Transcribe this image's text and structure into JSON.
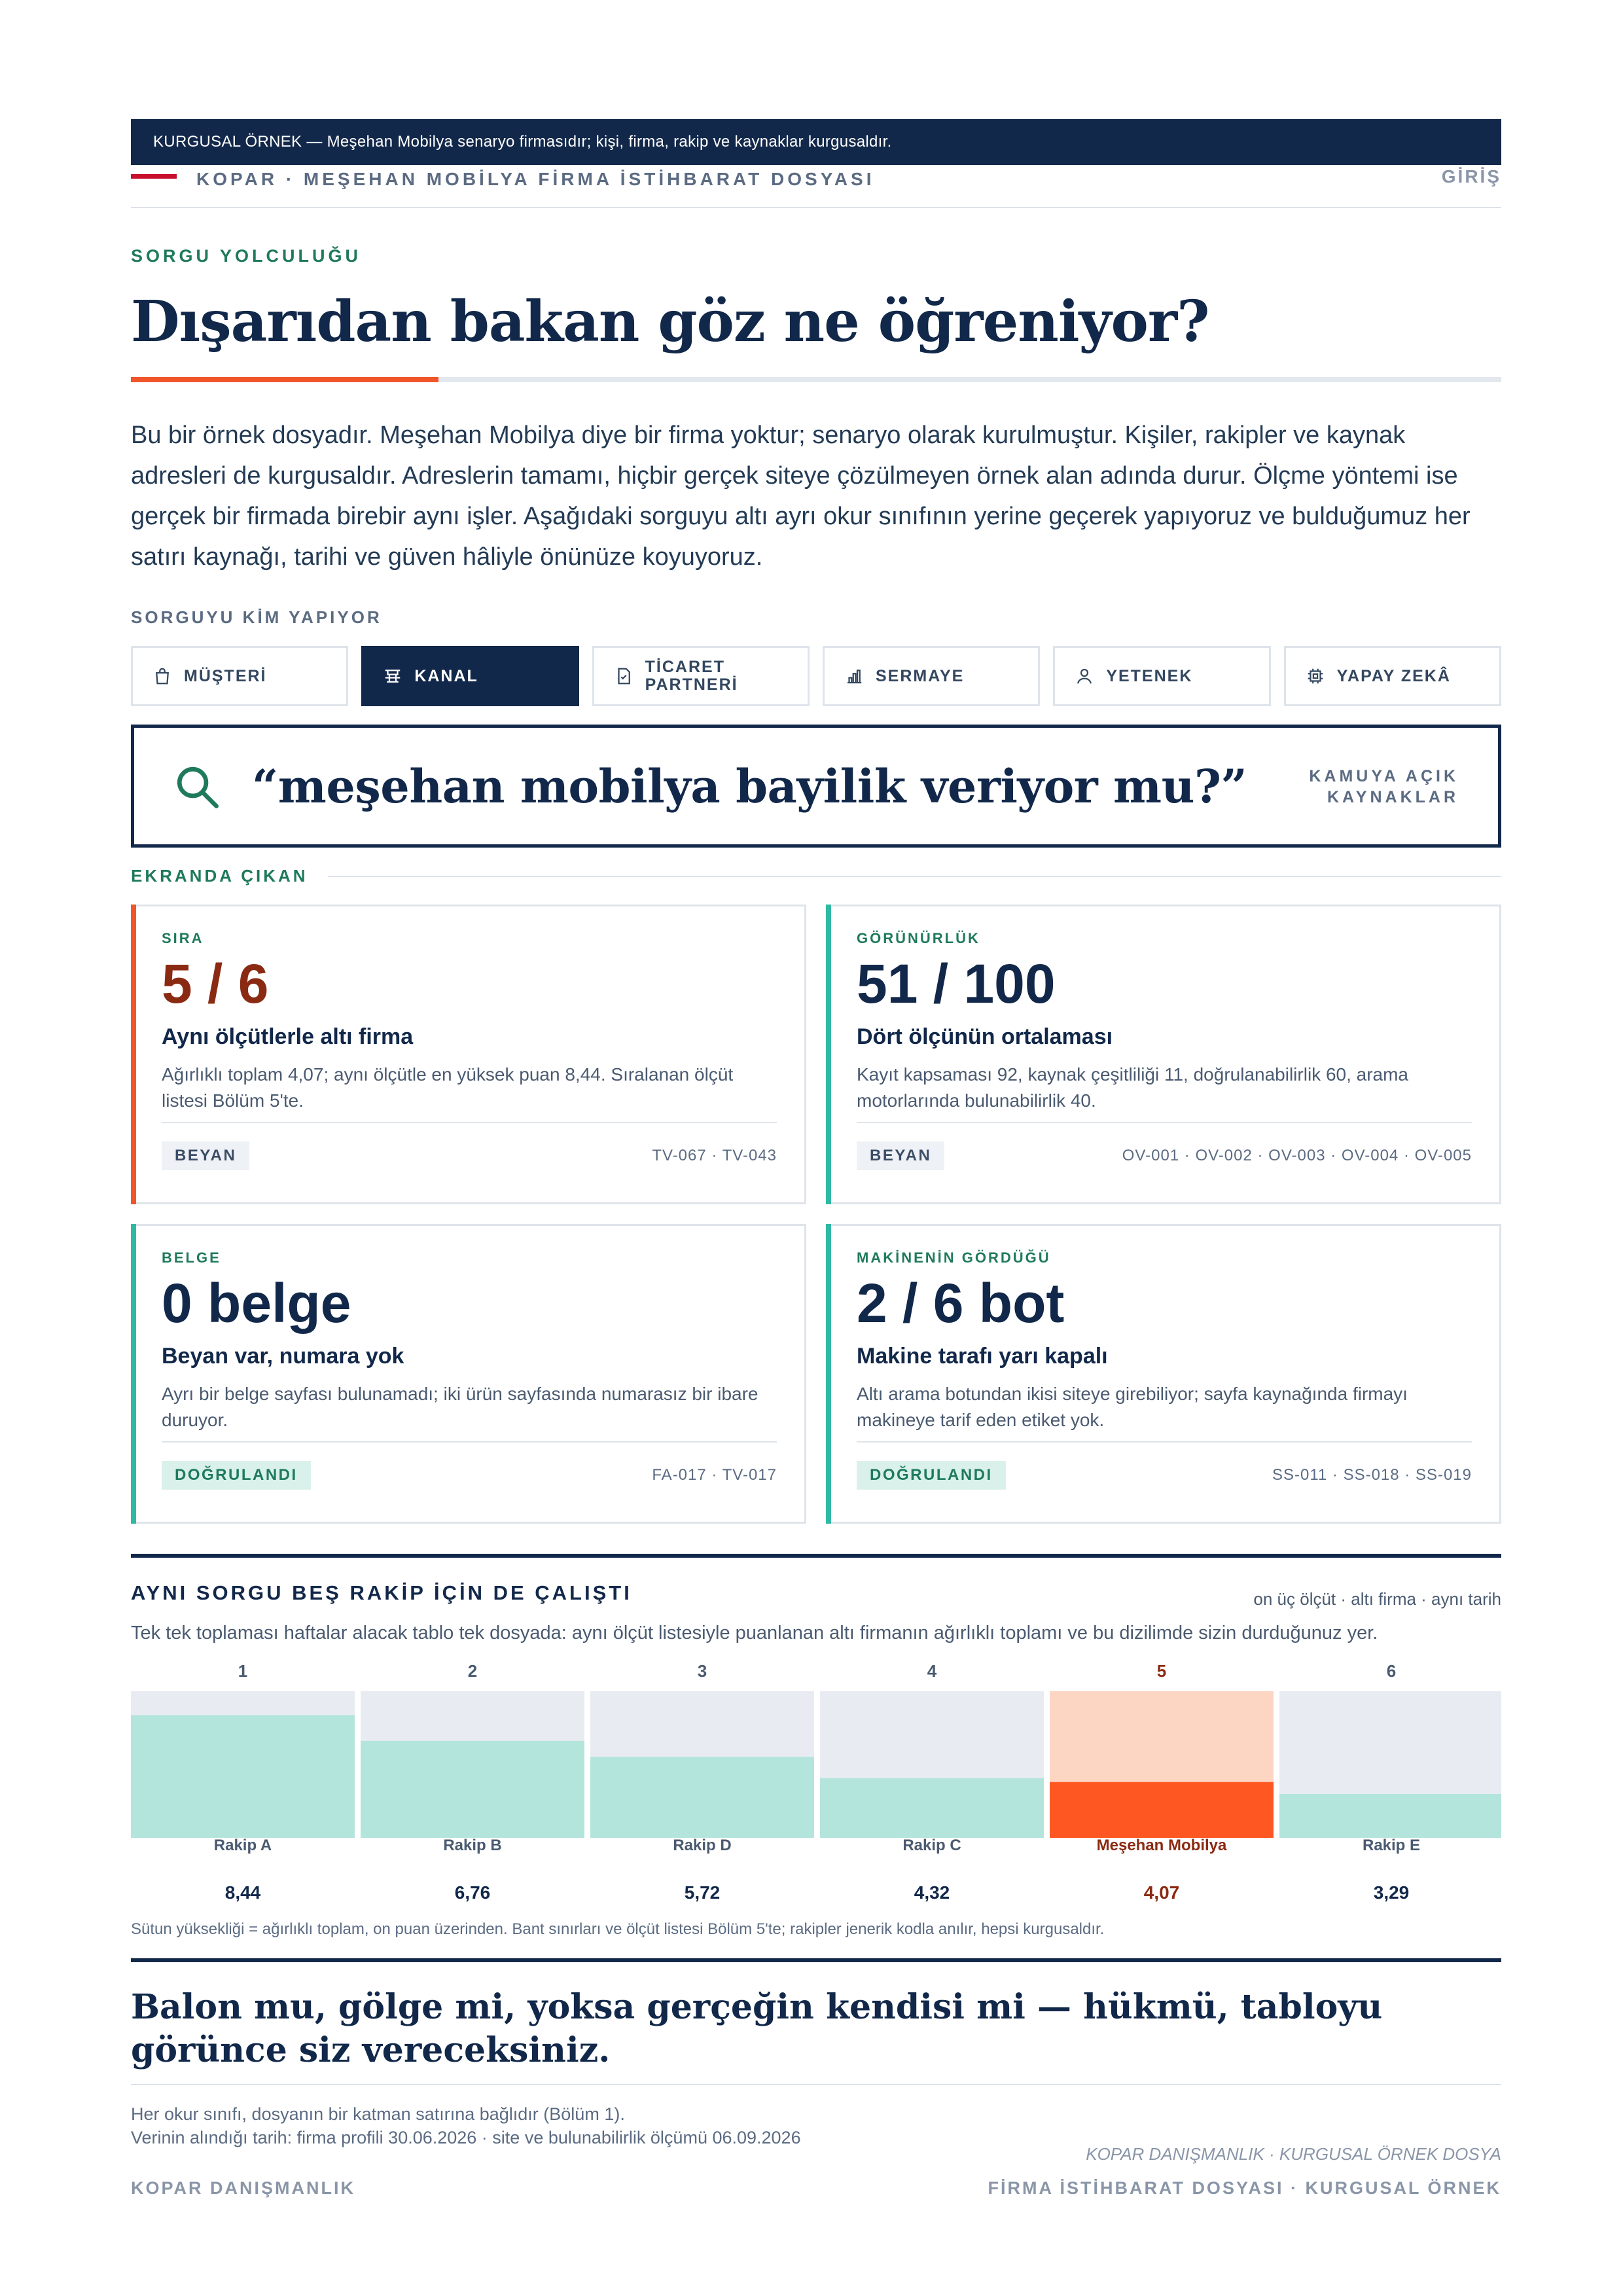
{
  "banner": "KURGUSAL ÖRNEK — Meşehan Mobilya senaryo firmasıdır; kişi, firma, rakip ve kaynaklar kurgusaldır.",
  "topnav": {
    "brand": "KOPAR · MEŞEHAN MOBİLYA FİRMA İSTİHBARAT DOSYASI",
    "entry": "GİRİŞ"
  },
  "kicker": "SORGU YOLCULUĞU",
  "title": "Dışarıdan bakan göz ne öğreniyor?",
  "intro": "Bu bir örnek dosyadır. Meşehan Mobilya diye bir firma yoktur; senaryo olarak kurulmuştur. Kişiler, rakipler ve kaynak adresleri de kurgusaldır. Adreslerin tamamı, hiçbir gerçek siteye çözülmeyen örnek alan adında durur. Ölçme yöntemi ise gerçek bir firmada birebir aynı işler. Aşağıdaki sorguyu altı ayrı okur sınıfının yerine geçerek yapıyoruz ve bulduğumuz her satırı kaynağı, tarihi ve güven hâliyle önünüze koyuyoruz.",
  "who": {
    "label": "SORGUYU KİM YAPIYOR",
    "tabs": [
      {
        "label": "MÜŞTERİ",
        "icon": "bag-icon",
        "active": false
      },
      {
        "label": "KANAL",
        "icon": "channel-icon",
        "active": true
      },
      {
        "label": "TİCARET PARTNERİ",
        "icon": "document-check-icon",
        "active": false
      },
      {
        "label": "SERMAYE",
        "icon": "bar-chart-icon",
        "active": false
      },
      {
        "label": "YETENEK",
        "icon": "person-icon",
        "active": false
      },
      {
        "label": "YAPAY ZEKÂ",
        "icon": "chip-icon",
        "active": false
      }
    ]
  },
  "query": {
    "text": "“meşehan mobilya bayilik veriyor mu?”",
    "source": "KAMUYA AÇIK KAYNAKLAR",
    "icon": "search-icon"
  },
  "screen_label": "EKRANDA ÇIKAN",
  "cards": [
    {
      "label": "SIRA",
      "big": "5 / 6",
      "title": "Aynı ölçütlerle altı firma",
      "desc": "Ağırlıklı toplam 4,07; aynı ölçütle en yüksek puan 8,44. Sıralanan ölçüt listesi Bölüm 5'te.",
      "badge": "BEYAN",
      "refs": "TV-067 · TV-043",
      "accent": "#f0562a",
      "bigColor": "#8b2a12"
    },
    {
      "label": "GÖRÜNÜRLÜK",
      "big": "51 / 100",
      "title": "Dört ölçünün ortalaması",
      "desc": "Kayıt kapsaması 92, kaynak çeşitliliği 11, doğrulanabilirlik 60, arama motorlarında bulunabilirlik 40.",
      "badge": "BEYAN",
      "refs": "OV-001 · OV-002 · OV-003 · OV-004 · OV-005",
      "accent": "#2fb9a4",
      "bigColor": "#12284a"
    },
    {
      "label": "BELGE",
      "big": "0 belge",
      "title": "Beyan var, numara yok",
      "desc": "Ayrı bir belge sayfası bulunamadı; iki ürün sayfasında numarasız bir ibare duruyor.",
      "badge": "DOĞRULANDI",
      "refs": "FA-017 · TV-017",
      "accent": "#2fb9a4",
      "bigColor": "#12284a"
    },
    {
      "label": "MAKİNENİN GÖRDÜĞÜ",
      "big": "2 / 6 bot",
      "title": "Makine tarafı yarı kapalı",
      "desc": "Altı arama botundan ikisi siteye girebiliyor; sayfa kaynağında firmayı makineye tarif eden etiket yok.",
      "badge": "DOĞRULANDI",
      "refs": "SS-011 · SS-018 · SS-019",
      "accent": "#2fb9a4",
      "bigColor": "#12284a"
    }
  ],
  "compare": {
    "title": "AYNI SORGU BEŞ RAKİP İÇİN DE ÇALIŞTI",
    "meta": "on üç ölçüt · altı firma · aynı tarih",
    "desc": "Tek tek toplaması haftalar alacak tablo tek dosyada: aynı ölçüt listesiyle puanlanan altı firmanın ağırlıklı toplamı ve bu dizilimde sizin durduğunuz yer.",
    "note": "Sütun yüksekliği = ağırlıklı toplam, on puan üzerinden. Bant sınırları ve ölçüt listesi Bölüm 5'te; rakipler jenerik kodla anılır, hepsi kurgusaldır."
  },
  "chart_data": {
    "type": "bar",
    "max": 10,
    "categories": [
      "Rakip A",
      "Rakip B",
      "Rakip D",
      "Rakip C",
      "Meşehan Mobilya",
      "Rakip E"
    ],
    "ranks": [
      "1",
      "2",
      "3",
      "4",
      "5",
      "6"
    ],
    "values": [
      8.44,
      6.76,
      5.72,
      4.32,
      4.07,
      3.29
    ],
    "value_labels": [
      "8,44",
      "6,76",
      "5,72",
      "4,32",
      "4,07",
      "3,29"
    ],
    "highlight_index": 4,
    "colors": {
      "fill": "#b4e5dc",
      "track": "#e8ecf2",
      "highlight_fill": "#ff5722",
      "highlight_track": "#fdd5c3"
    }
  },
  "closing": "Balon mu, gölge mi, yoksa gerçeğin kendisi mi — hükmü, tabloyu görünce siz vereceksiniz.",
  "footer": {
    "line1": "Her okur sınıfı, dosyanın bir katman satırına bağlıdır (Bölüm 1).",
    "line2": "Verinin alındığı tarih: firma profili 30.06.2026 · site ve bulunabilirlik ölçümü 06.09.2026",
    "right": "KOPAR DANIŞMANLIK · KURGUSAL ÖRNEK DOSYA",
    "bottom_left": "KOPAR DANIŞMANLIK",
    "bottom_right": "FİRMA İSTİHBARAT DOSYASI · KURGUSAL ÖRNEK"
  }
}
